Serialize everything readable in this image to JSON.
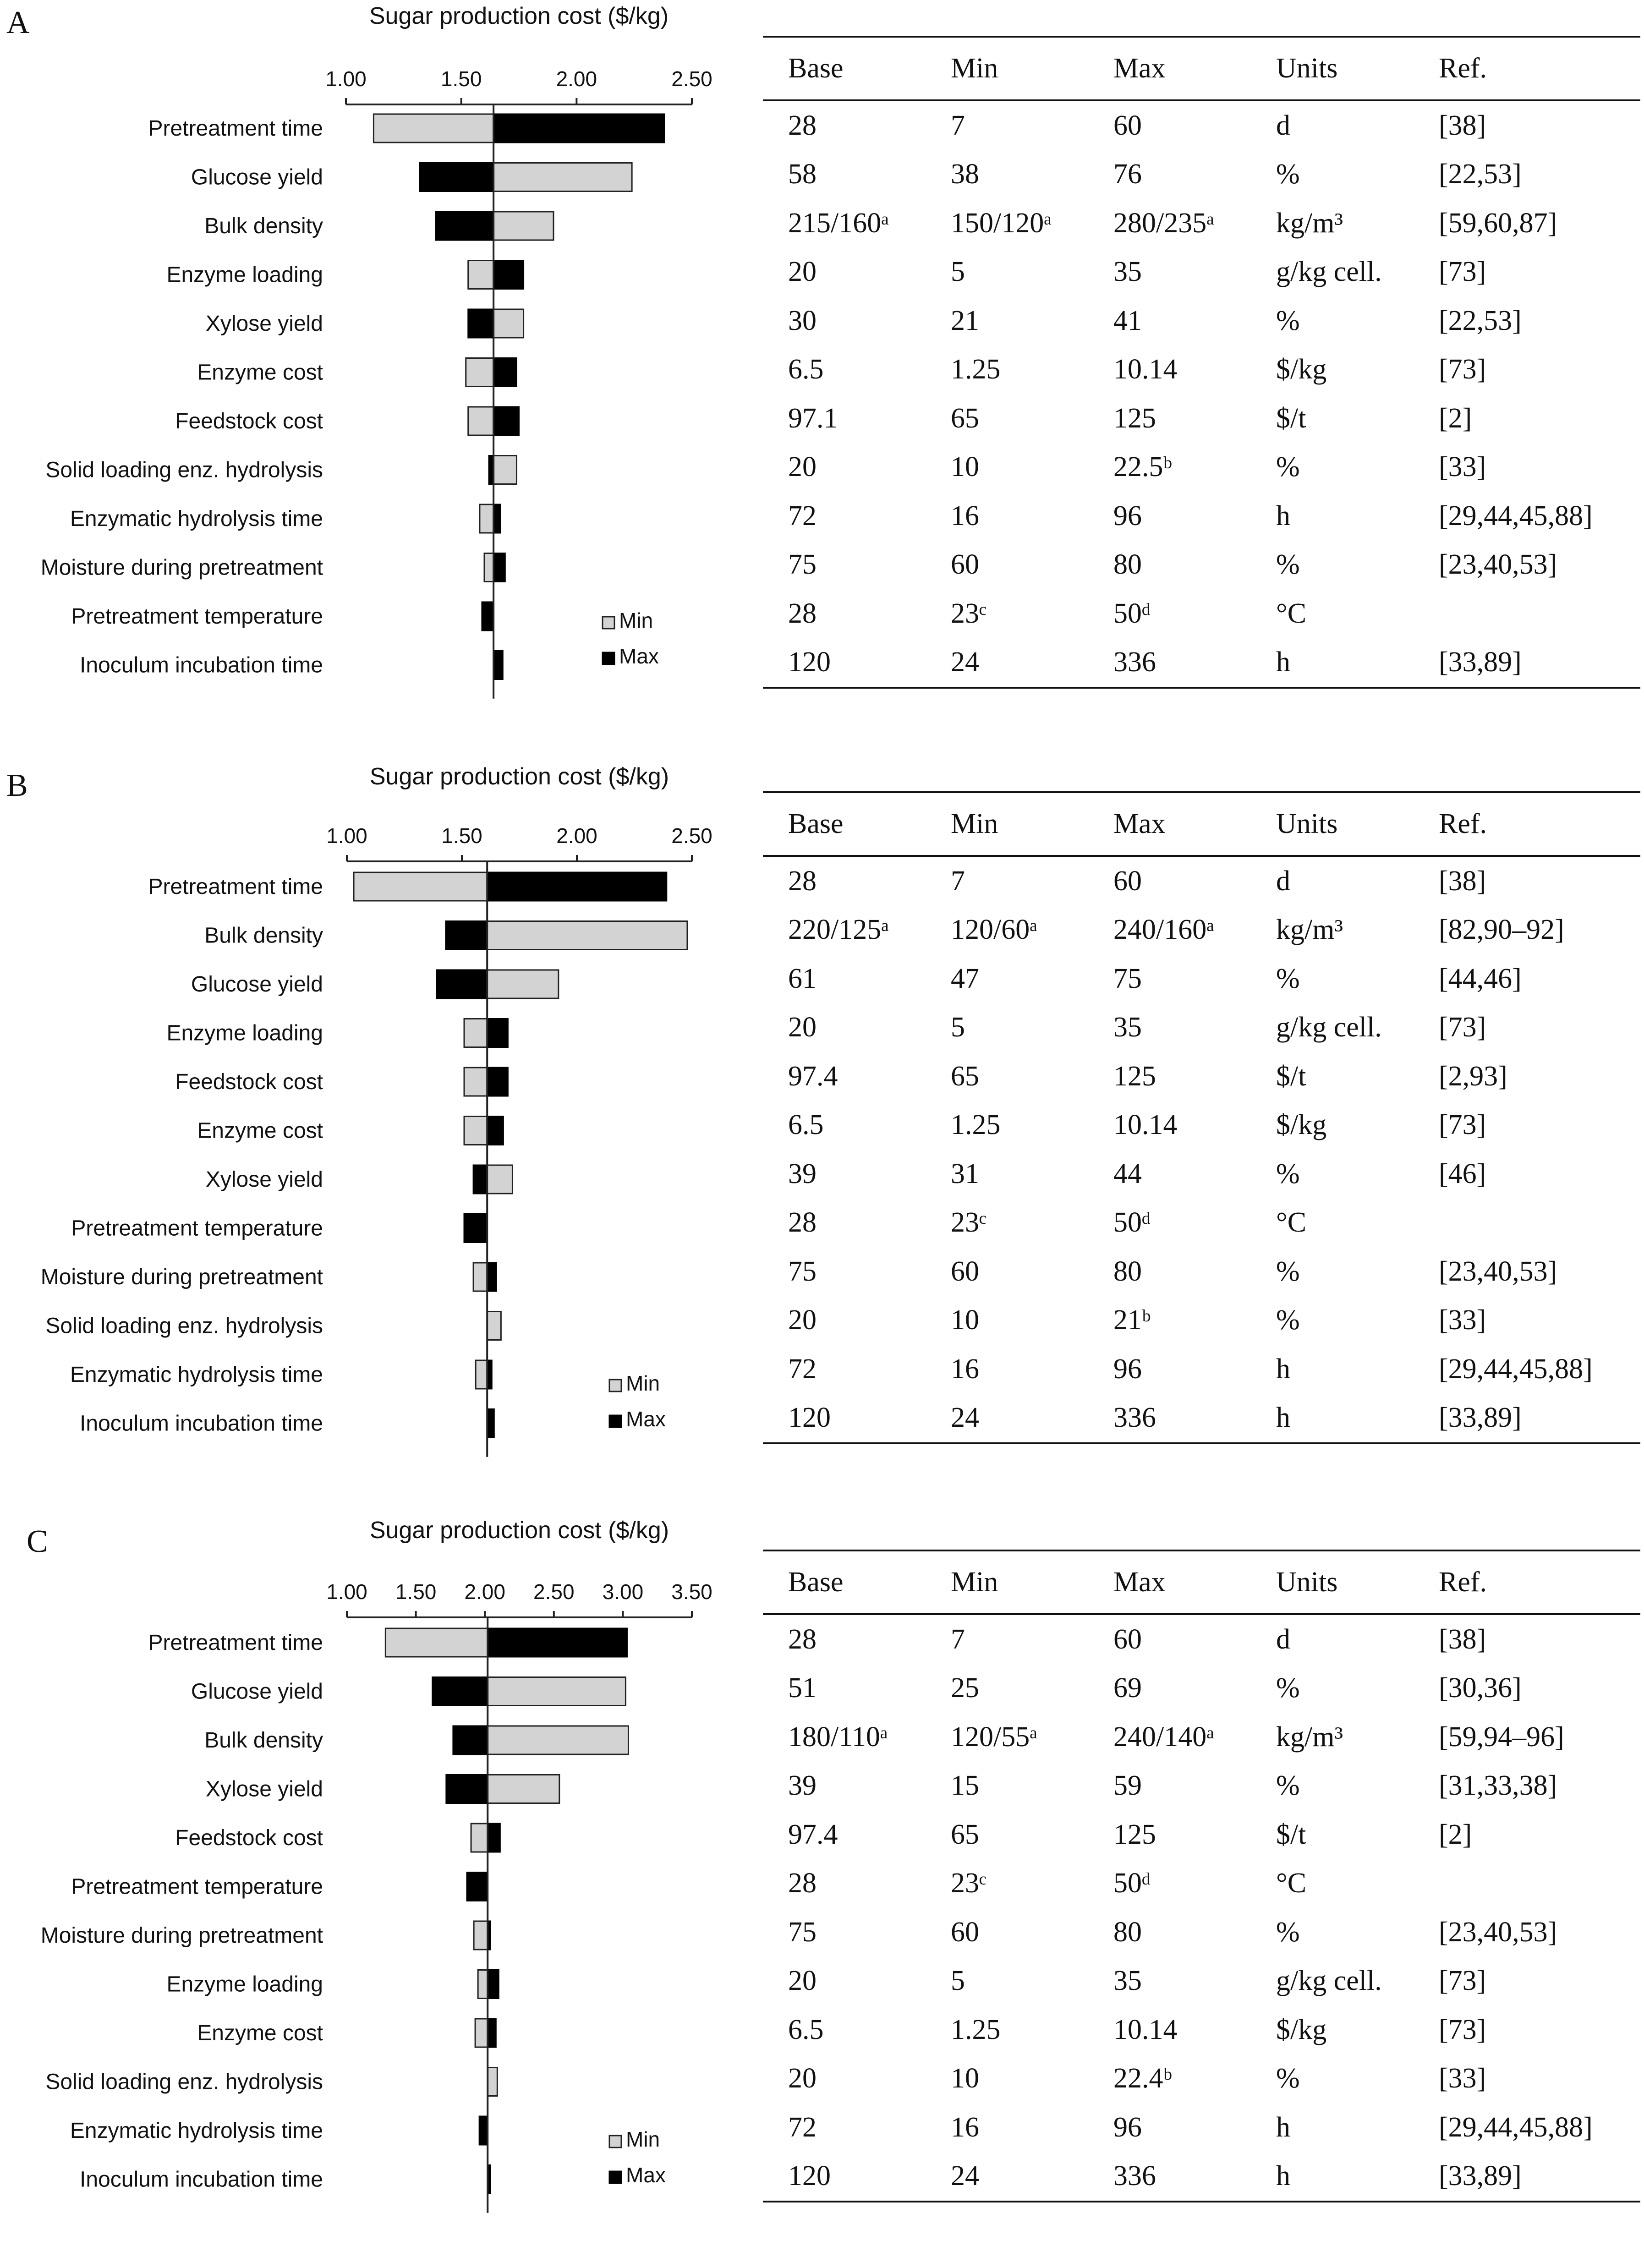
{
  "colors": {
    "min_bar": "#d3d3d3",
    "max_bar": "#000000"
  },
  "legend": {
    "min": "Min",
    "max": "Max"
  },
  "table_headers": [
    "Base",
    "Min",
    "Max",
    "Units",
    "Ref."
  ],
  "panels": [
    {
      "letter": "A",
      "table_rows": [
        [
          "28",
          "7",
          "60",
          "d",
          "[38]"
        ],
        [
          "58",
          "38",
          "76",
          "%",
          "[22,53]"
        ],
        [
          "215/160ᵃ",
          "150/120ᵃ",
          "280/235ᵃ",
          "kg/m³",
          "[59,60,87]"
        ],
        [
          "20",
          "5",
          "35",
          "g/kg cell.",
          "[73]"
        ],
        [
          "30",
          "21",
          "41",
          "%",
          "[22,53]"
        ],
        [
          "6.5",
          "1.25",
          "10.14",
          "$/kg",
          "[73]"
        ],
        [
          "97.1",
          "65",
          "125",
          "$/t",
          "[2]"
        ],
        [
          "20",
          "10",
          "22.5ᵇ",
          "%",
          "[33]"
        ],
        [
          "72",
          "16",
          "96",
          "h",
          "[29,44,45,88]"
        ],
        [
          "75",
          "60",
          "80",
          "%",
          "[23,40,53]"
        ],
        [
          "28",
          "23ᶜ",
          "50ᵈ",
          "°C",
          ""
        ],
        [
          "120",
          "24",
          "336",
          "h",
          "[33,89]"
        ]
      ]
    },
    {
      "letter": "B",
      "table_rows": [
        [
          "28",
          "7",
          "60",
          "d",
          "[38]"
        ],
        [
          "220/125ᵃ",
          "120/60ᵃ",
          "240/160ᵃ",
          "kg/m³",
          "[82,90–92]"
        ],
        [
          "61",
          "47",
          "75",
          "%",
          "[44,46]"
        ],
        [
          "20",
          "5",
          "35",
          "g/kg cell.",
          "[73]"
        ],
        [
          "97.4",
          "65",
          "125",
          "$/t",
          "[2,93]"
        ],
        [
          "6.5",
          "1.25",
          "10.14",
          "$/kg",
          "[73]"
        ],
        [
          "39",
          "31",
          "44",
          "%",
          "[46]"
        ],
        [
          "28",
          "23ᶜ",
          "50ᵈ",
          "°C",
          ""
        ],
        [
          "75",
          "60",
          "80",
          "%",
          "[23,40,53]"
        ],
        [
          "20",
          "10",
          "21ᵇ",
          "%",
          "[33]"
        ],
        [
          "72",
          "16",
          "96",
          "h",
          "[29,44,45,88]"
        ],
        [
          "120",
          "24",
          "336",
          "h",
          "[33,89]"
        ]
      ]
    },
    {
      "letter": "C",
      "table_rows": [
        [
          "28",
          "7",
          "60",
          "d",
          "[38]"
        ],
        [
          "51",
          "25",
          "69",
          "%",
          "[30,36]"
        ],
        [
          "180/110ᵃ",
          "120/55ᵃ",
          "240/140ᵃ",
          "kg/m³",
          "[59,94–96]"
        ],
        [
          "39",
          "15",
          "59",
          "%",
          "[31,33,38]"
        ],
        [
          "97.4",
          "65",
          "125",
          "$/t",
          "[2]"
        ],
        [
          "28",
          "23ᶜ",
          "50ᵈ",
          "°C",
          ""
        ],
        [
          "75",
          "60",
          "80",
          "%",
          "[23,40,53]"
        ],
        [
          "20",
          "5",
          "35",
          "g/kg cell.",
          "[73]"
        ],
        [
          "6.5",
          "1.25",
          "10.14",
          "$/kg",
          "[73]"
        ],
        [
          "20",
          "10",
          "22.4ᵇ",
          "%",
          "[33]"
        ],
        [
          "72",
          "16",
          "96",
          "h",
          "[29,44,45,88]"
        ],
        [
          "120",
          "24",
          "336",
          "h",
          "[33,89]"
        ]
      ]
    }
  ],
  "chart_data": [
    {
      "type": "bar",
      "orientation": "horizontal-tornado",
      "title": "Sugar production cost ($/kg)",
      "xlim": [
        1.0,
        2.5
      ],
      "ticks": [
        "1.00",
        "1.50",
        "2.00",
        "2.50"
      ],
      "baseline": 1.64,
      "categories": [
        "Pretreatment time",
        "Glucose yield",
        "Bulk density",
        "Enzyme loading",
        "Xylose yield",
        "Enzyme cost",
        "Feedstock cost",
        "Solid loading enz. hydrolysis",
        "Enzymatic hydrolysis time",
        "Moisture during pretreatment",
        "Pretreatment temperature",
        "Inoculum incubation time"
      ],
      "series": [
        {
          "name": "Min",
          "values": [
            1.12,
            2.24,
            1.9,
            1.53,
            1.77,
            1.52,
            1.53,
            1.74,
            1.58,
            1.6,
            1.64,
            1.64
          ]
        },
        {
          "name": "Max",
          "values": [
            2.38,
            1.32,
            1.39,
            1.77,
            1.53,
            1.74,
            1.75,
            1.62,
            1.67,
            1.69,
            1.59,
            1.68
          ]
        }
      ],
      "legend": "right"
    },
    {
      "type": "bar",
      "orientation": "horizontal-tornado",
      "title": "Sugar production cost ($/kg)",
      "xlim": [
        1.0,
        2.5
      ],
      "ticks": [
        "1.00",
        "1.50",
        "2.00",
        "2.50"
      ],
      "baseline": 1.61,
      "categories": [
        "Pretreatment time",
        "Bulk density",
        "Glucose yield",
        "Enzyme loading",
        "Feedstock cost",
        "Enzyme cost",
        "Xylose yield",
        "Pretreatment temperature",
        "Moisture during pretreatment",
        "Solid loading enz. hydrolysis",
        "Enzymatic hydrolysis time",
        "Inoculum incubation time"
      ],
      "series": [
        {
          "name": "Min",
          "values": [
            1.03,
            2.48,
            1.92,
            1.51,
            1.51,
            1.51,
            1.72,
            1.61,
            1.55,
            1.67,
            1.56,
            1.61
          ]
        },
        {
          "name": "Max",
          "values": [
            2.39,
            1.43,
            1.39,
            1.7,
            1.7,
            1.68,
            1.55,
            1.51,
            1.65,
            1.61,
            1.63,
            1.64
          ]
        }
      ],
      "legend": "right"
    },
    {
      "type": "bar",
      "orientation": "horizontal-tornado",
      "title": "Sugar production cost ($/kg)",
      "xlim": [
        1.0,
        3.5
      ],
      "ticks": [
        "1.00",
        "1.50",
        "2.00",
        "2.50",
        "3.00",
        "3.50"
      ],
      "baseline": 2.02,
      "categories": [
        "Pretreatment time",
        "Glucose yield",
        "Bulk density",
        "Xylose yield",
        "Feedstock cost",
        "Pretreatment temperature",
        "Moisture during pretreatment",
        "Enzyme loading",
        "Enzyme cost",
        "Solid loading enz. hydrolysis",
        "Enzymatic hydrolysis time",
        "Inoculum incubation time"
      ],
      "series": [
        {
          "name": "Min",
          "values": [
            1.28,
            3.02,
            3.04,
            2.54,
            1.9,
            2.02,
            1.92,
            1.95,
            1.93,
            2.09,
            2.02,
            2.02
          ]
        },
        {
          "name": "Max",
          "values": [
            3.03,
            1.62,
            1.77,
            1.72,
            2.11,
            1.87,
            2.04,
            2.1,
            2.08,
            2.02,
            1.96,
            2.04
          ]
        }
      ],
      "legend": "right"
    }
  ]
}
